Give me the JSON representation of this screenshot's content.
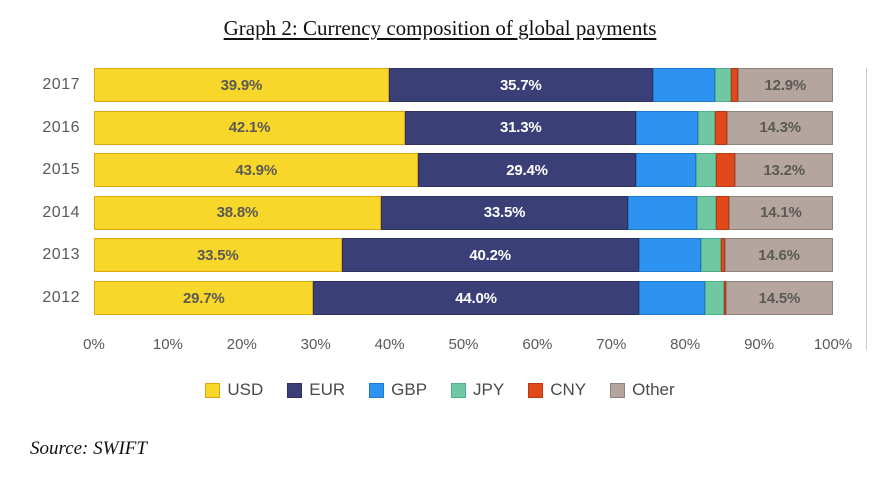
{
  "chart_data": {
    "type": "bar",
    "variant": "horizontal-stacked-100pct",
    "title": "Graph 2: Currency composition of global payments",
    "source": "Source: SWIFT",
    "categories": [
      "2017",
      "2016",
      "2015",
      "2014",
      "2013",
      "2012"
    ],
    "series": [
      {
        "name": "USD",
        "color": "#F8D72B",
        "border_color": "#DFA60F",
        "label_color": "#5B5955",
        "values": [
          39.9,
          42.1,
          43.9,
          38.8,
          33.5,
          29.7
        ],
        "labels": [
          "39.9%",
          "42.1%",
          "43.9%",
          "38.8%",
          "33.5%",
          "29.7%"
        ]
      },
      {
        "name": "EUR",
        "color": "#3A4077",
        "border_color": "#2D325E",
        "label_color": "#FFFFFF",
        "values": [
          35.7,
          31.3,
          29.4,
          33.5,
          40.2,
          44.0
        ],
        "labels": [
          "35.7%",
          "31.3%",
          "29.4%",
          "33.5%",
          "40.2%",
          "44.0%"
        ]
      },
      {
        "name": "GBP",
        "color": "#2E93F0",
        "border_color": "#1E78CE",
        "label_color": "",
        "values": [
          8.5,
          8.3,
          8.2,
          9.3,
          8.5,
          9.0
        ],
        "labels": null
      },
      {
        "name": "JPY",
        "color": "#6FC8A3",
        "border_color": "#4FAE87",
        "label_color": "",
        "values": [
          2.1,
          2.3,
          2.7,
          2.6,
          2.6,
          2.6
        ],
        "labels": null
      },
      {
        "name": "CNY",
        "color": "#E1491B",
        "border_color": "#BC3A12",
        "label_color": "",
        "values": [
          0.9,
          1.7,
          2.6,
          1.7,
          0.6,
          0.2
        ],
        "labels": null
      },
      {
        "name": "Other",
        "color": "#B4A69E",
        "border_color": "#8F837B",
        "label_color": "#5B5955",
        "values": [
          12.9,
          14.3,
          13.2,
          14.1,
          14.6,
          14.5
        ],
        "labels": [
          "12.9%",
          "14.3%",
          "13.2%",
          "14.1%",
          "14.6%",
          "14.5%"
        ]
      }
    ],
    "x_axis": {
      "min": 0,
      "max": 100,
      "tick_labels": [
        "0%",
        "10%",
        "20%",
        "30%",
        "40%",
        "50%",
        "60%",
        "70%",
        "80%",
        "90%",
        "100%"
      ]
    },
    "legend": {
      "position": "bottom",
      "entries": [
        "USD",
        "EUR",
        "GBP",
        "JPY",
        "CNY",
        "Other"
      ]
    }
  }
}
